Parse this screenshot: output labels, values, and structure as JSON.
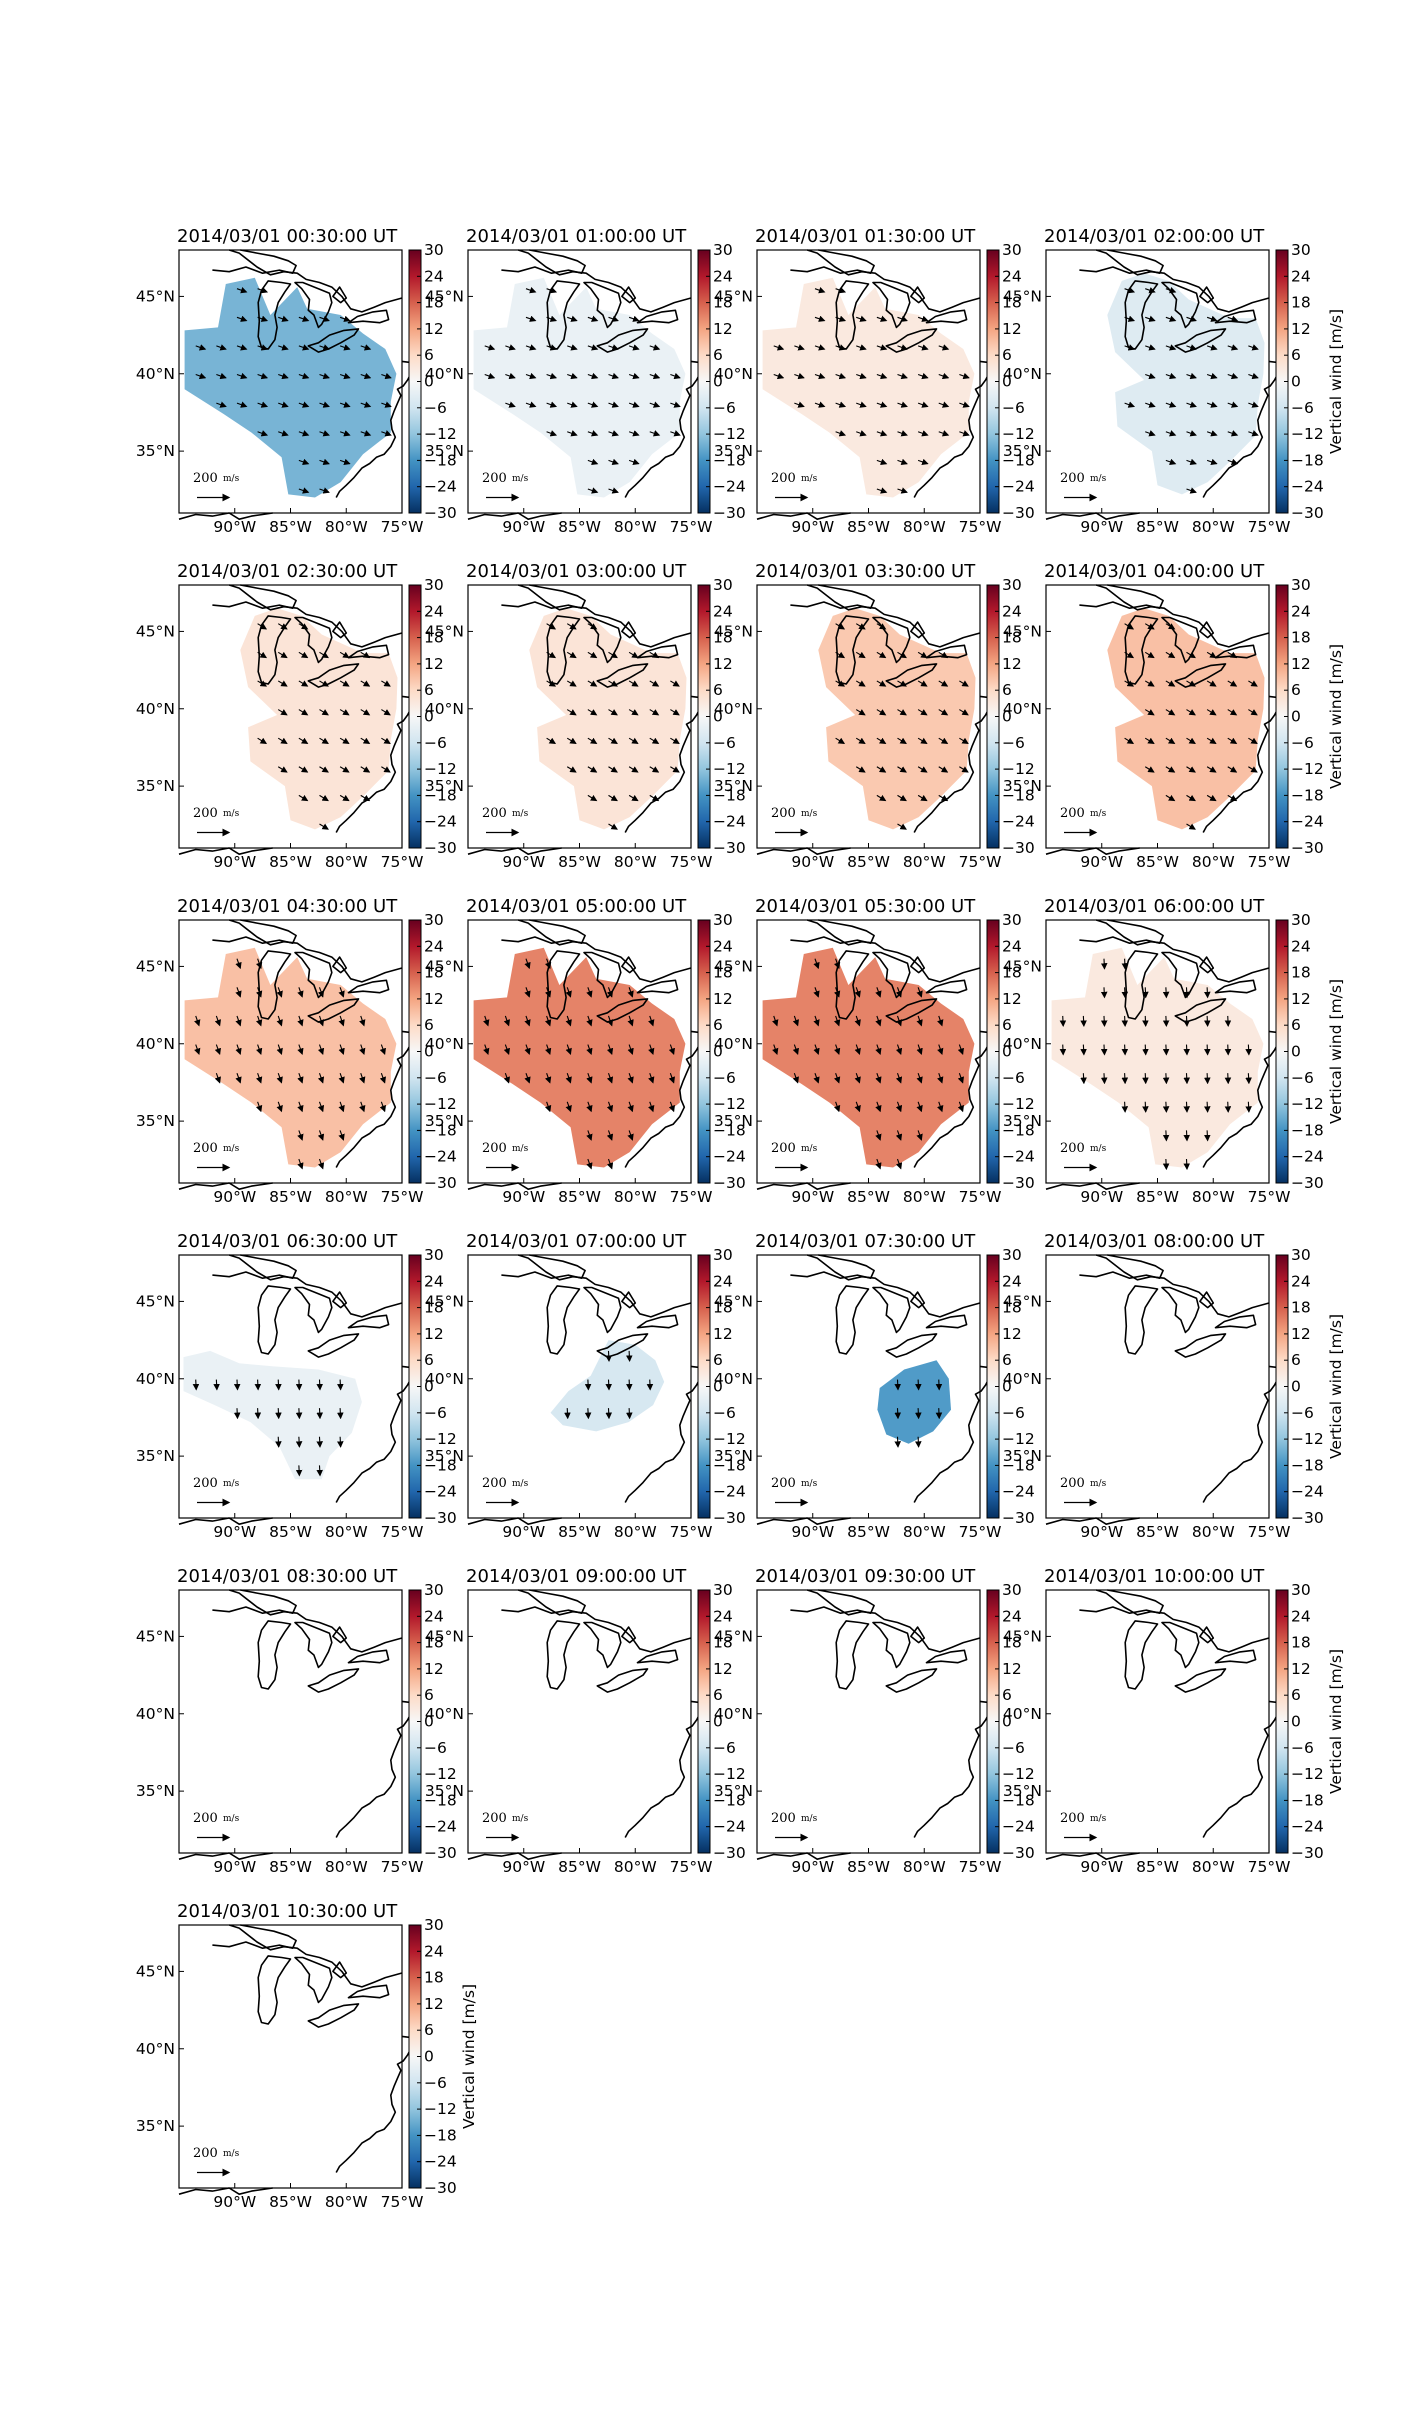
{
  "chart_data": {
    "type": "heatmap",
    "description_units": {
      "colorbar_label": "Vertical wind [m/s]",
      "scale_label": "200 m/s"
    },
    "colorbar": {
      "label": "Vertical wind [m/s]",
      "range": [
        -30,
        30
      ],
      "ticks": [
        "30",
        "24",
        "18",
        "12",
        "6",
        "0",
        "−6",
        "−12",
        "−18",
        "−24",
        "−30"
      ],
      "colormap": "RdBu_r"
    },
    "x_ticks": [
      "90°W",
      "85°W",
      "80°W",
      "75°W"
    ],
    "y_ticks": [
      "45°N",
      "40°N",
      "35°N"
    ],
    "scale_arrow": {
      "value": "200",
      "unit": "m/s"
    },
    "panels": [
      {
        "title": "2014/03/01 00:30:00 UT",
        "mean_vertical_wind": -14,
        "region": "full",
        "vectors": "east-southeast"
      },
      {
        "title": "2014/03/01 01:00:00 UT",
        "mean_vertical_wind": -2,
        "region": "full",
        "vectors": "east-southeast"
      },
      {
        "title": "2014/03/01 01:30:00 UT",
        "mean_vertical_wind": 3,
        "region": "full",
        "vectors": "east-southeast"
      },
      {
        "title": "2014/03/01 02:00:00 UT",
        "mean_vertical_wind": -4,
        "region": "east",
        "vectors": "east-southeast"
      },
      {
        "title": "2014/03/01 02:30:00 UT",
        "mean_vertical_wind": 4,
        "region": "east",
        "vectors": "southeast"
      },
      {
        "title": "2014/03/01 03:00:00 UT",
        "mean_vertical_wind": 4,
        "region": "east",
        "vectors": "southeast"
      },
      {
        "title": "2014/03/01 03:30:00 UT",
        "mean_vertical_wind": 8,
        "region": "east",
        "vectors": "southeast"
      },
      {
        "title": "2014/03/01 04:00:00 UT",
        "mean_vertical_wind": 9,
        "region": "east",
        "vectors": "southeast"
      },
      {
        "title": "2014/03/01 04:30:00 UT",
        "mean_vertical_wind": 9,
        "region": "full",
        "vectors": "south-southeast"
      },
      {
        "title": "2014/03/01 05:00:00 UT",
        "mean_vertical_wind": 15,
        "region": "full",
        "vectors": "south-southeast"
      },
      {
        "title": "2014/03/01 05:30:00 UT",
        "mean_vertical_wind": 15,
        "region": "full",
        "vectors": "south-southeast"
      },
      {
        "title": "2014/03/01 06:00:00 UT",
        "mean_vertical_wind": 3,
        "region": "full",
        "vectors": "south"
      },
      {
        "title": "2014/03/01 06:30:00 UT",
        "mean_vertical_wind": -2,
        "region": "south-west",
        "vectors": "south"
      },
      {
        "title": "2014/03/01 07:00:00 UT",
        "mean_vertical_wind": -5,
        "region": "south-east",
        "vectors": "south"
      },
      {
        "title": "2014/03/01 07:30:00 UT",
        "mean_vertical_wind": -17,
        "region": "small",
        "vectors": "south"
      },
      {
        "title": "2014/03/01 08:00:00 UT",
        "mean_vertical_wind": null,
        "region": "none",
        "vectors": "none"
      },
      {
        "title": "2014/03/01 08:30:00 UT",
        "mean_vertical_wind": null,
        "region": "none",
        "vectors": "none"
      },
      {
        "title": "2014/03/01 09:00:00 UT",
        "mean_vertical_wind": null,
        "region": "none",
        "vectors": "none"
      },
      {
        "title": "2014/03/01 09:30:00 UT",
        "mean_vertical_wind": null,
        "region": "none",
        "vectors": "none"
      },
      {
        "title": "2014/03/01 10:00:00 UT",
        "mean_vertical_wind": null,
        "region": "none",
        "vectors": "none"
      },
      {
        "title": "2014/03/01 10:30:00 UT",
        "mean_vertical_wind": null,
        "region": "none",
        "vectors": "none"
      }
    ]
  }
}
